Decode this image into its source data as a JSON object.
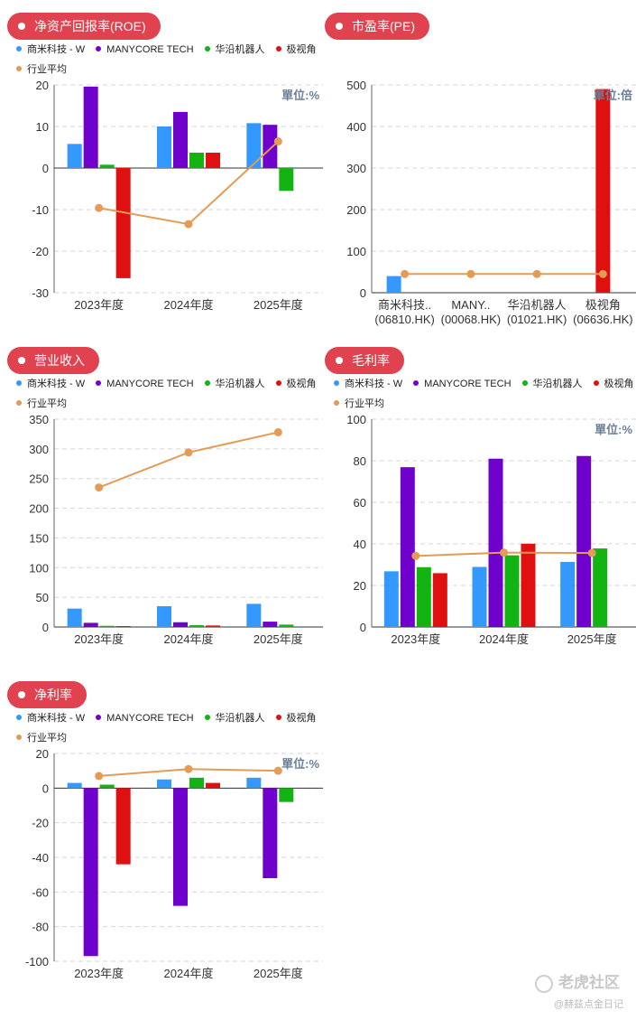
{
  "colors": {
    "series": [
      "#3399ff",
      "#7000cc",
      "#12b312",
      "#e01010"
    ],
    "avg": "#e39b55",
    "pill": "#e0424f",
    "unit": "#6a7f97"
  },
  "legend_entries": [
    {
      "name": "商米科技 - W",
      "color": "#3399ff"
    },
    {
      "name": "MANYCORE TECH",
      "color": "#7000cc"
    },
    {
      "name": "华沿机器人",
      "color": "#12b312"
    },
    {
      "name": "极视角",
      "color": "#e01010"
    },
    {
      "name": "行业平均",
      "color": "#e39b55"
    }
  ],
  "watermark": {
    "text": "老虎社区",
    "sub": "@赫兹点金日记"
  },
  "chart_data": [
    {
      "id": "roe",
      "type": "bar",
      "title": "净资产回报率(ROE)",
      "unit": "單位:%",
      "categories": [
        "2023年度",
        "2024年度",
        "2025年度"
      ],
      "ylim": [
        -30,
        20
      ],
      "yticks": [
        20,
        10,
        0,
        -10,
        -20,
        -30
      ],
      "series": [
        {
          "name": "商米科技 - W",
          "values": [
            5.8,
            10.0,
            10.8
          ]
        },
        {
          "name": "MANYCORE TECH",
          "values": [
            19.6,
            13.5,
            10.4
          ]
        },
        {
          "name": "华沿机器人",
          "values": [
            0.8,
            3.7,
            -5.5
          ]
        },
        {
          "name": "极视角",
          "values": [
            -26.5,
            3.7,
            null
          ]
        }
      ],
      "avg": {
        "name": "行业平均",
        "values": [
          -9.6,
          -13.5,
          6.4
        ]
      }
    },
    {
      "id": "pe",
      "type": "bar",
      "title": "市盈率(PE)",
      "unit": "單位:倍",
      "categories": [
        "商米科技..",
        "MANY..",
        "华沿机器人",
        "极视角"
      ],
      "sublabels": [
        "(06810.HK)",
        "(00068.HK)",
        "(01021.HK)",
        "(06636.HK)"
      ],
      "ylim": [
        0,
        500
      ],
      "yticks": [
        500,
        400,
        300,
        200,
        100,
        0
      ],
      "values": [
        40,
        null,
        null,
        490
      ],
      "avg": {
        "name": "行业平均",
        "values": [
          45,
          45,
          45,
          45
        ]
      }
    },
    {
      "id": "revenue",
      "type": "bar",
      "title": "营业收入",
      "categories": [
        "2023年度",
        "2024年度",
        "2025年度"
      ],
      "ylim": [
        0,
        350
      ],
      "yticks": [
        350,
        300,
        250,
        200,
        150,
        100,
        50,
        0
      ],
      "series": [
        {
          "name": "商米科技 - W",
          "values": [
            31,
            35,
            39
          ]
        },
        {
          "name": "MANYCORE TECH",
          "values": [
            7,
            8,
            9
          ]
        },
        {
          "name": "华沿机器人",
          "values": [
            2,
            3,
            4
          ]
        },
        {
          "name": "极视角",
          "values": [
            1.5,
            2.5,
            null
          ]
        }
      ],
      "avg": {
        "name": "行业平均",
        "values": [
          235,
          294,
          328
        ]
      }
    },
    {
      "id": "gross",
      "type": "bar",
      "title": "毛利率",
      "unit": "單位:%",
      "categories": [
        "2023年度",
        "2024年度",
        "2025年度"
      ],
      "ylim": [
        0,
        100
      ],
      "yticks": [
        100,
        80,
        60,
        40,
        20,
        0
      ],
      "series": [
        {
          "name": "商米科技 - W",
          "values": [
            26.8,
            28.9,
            31.3
          ]
        },
        {
          "name": "MANYCORE TECH",
          "values": [
            76.9,
            81.0,
            82.3
          ]
        },
        {
          "name": "华沿机器人",
          "values": [
            28.8,
            34.5,
            37.8
          ]
        },
        {
          "name": "极视角",
          "values": [
            25.9,
            40.1,
            null
          ]
        }
      ],
      "avg": {
        "name": "行业平均",
        "values": [
          34.2,
          35.8,
          35.6
        ]
      }
    },
    {
      "id": "net",
      "type": "bar",
      "title": "净利率",
      "unit": "單位:%",
      "categories": [
        "2023年度",
        "2024年度",
        "2025年度"
      ],
      "ylim": [
        -100,
        20
      ],
      "yticks": [
        20,
        0,
        -20,
        -40,
        -60,
        -80,
        -100
      ],
      "series": [
        {
          "name": "商米科技 - W",
          "values": [
            3.0,
            5.0,
            6.0
          ]
        },
        {
          "name": "MANYCORE TECH",
          "values": [
            -97.0,
            -68.0,
            -52.0
          ]
        },
        {
          "name": "华沿机器人",
          "values": [
            2.0,
            6.0,
            -8.0
          ]
        },
        {
          "name": "极视角",
          "values": [
            -44.0,
            3.0,
            null
          ]
        }
      ],
      "avg": {
        "name": "行业平均",
        "values": [
          7.0,
          11.0,
          10.0
        ]
      }
    }
  ]
}
